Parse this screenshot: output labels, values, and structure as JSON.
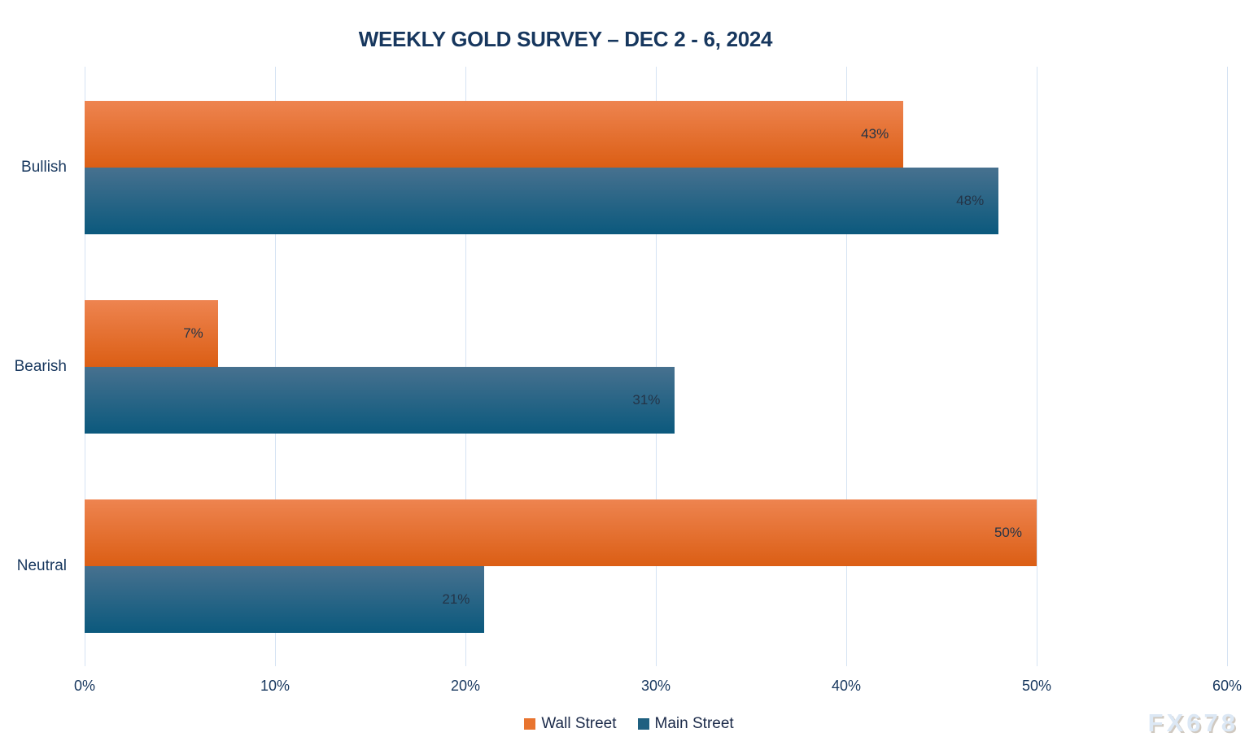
{
  "title": "WEEKLY GOLD SURVEY – DEC 2 - 6, 2024",
  "watermark": "FX678",
  "chart_data": {
    "type": "bar",
    "orientation": "horizontal",
    "title": "WEEKLY GOLD SURVEY – DEC 2 - 6, 2024",
    "categories": [
      "Bullish",
      "Bearish",
      "Neutral"
    ],
    "series": [
      {
        "name": "Wall Street",
        "values": [
          43,
          7,
          50
        ],
        "legend_color": "#e8742f",
        "gradient_top": "#ee8450",
        "gradient_bottom": "#db5e14"
      },
      {
        "name": "Main Street",
        "values": [
          48,
          31,
          21
        ],
        "legend_color": "#1f6080",
        "gradient_top": "#47718f",
        "gradient_bottom": "#0b597d"
      }
    ],
    "value_suffix": "%",
    "xlim": [
      0,
      60
    ],
    "x_tick_step": 10,
    "x_tick_labels": [
      "0%",
      "10%",
      "20%",
      "30%",
      "40%",
      "50%",
      "60%"
    ],
    "grid": true,
    "gridline_color": "#d5e3f3",
    "legend_position": "bottom",
    "data_labels_inside_end": true
  }
}
